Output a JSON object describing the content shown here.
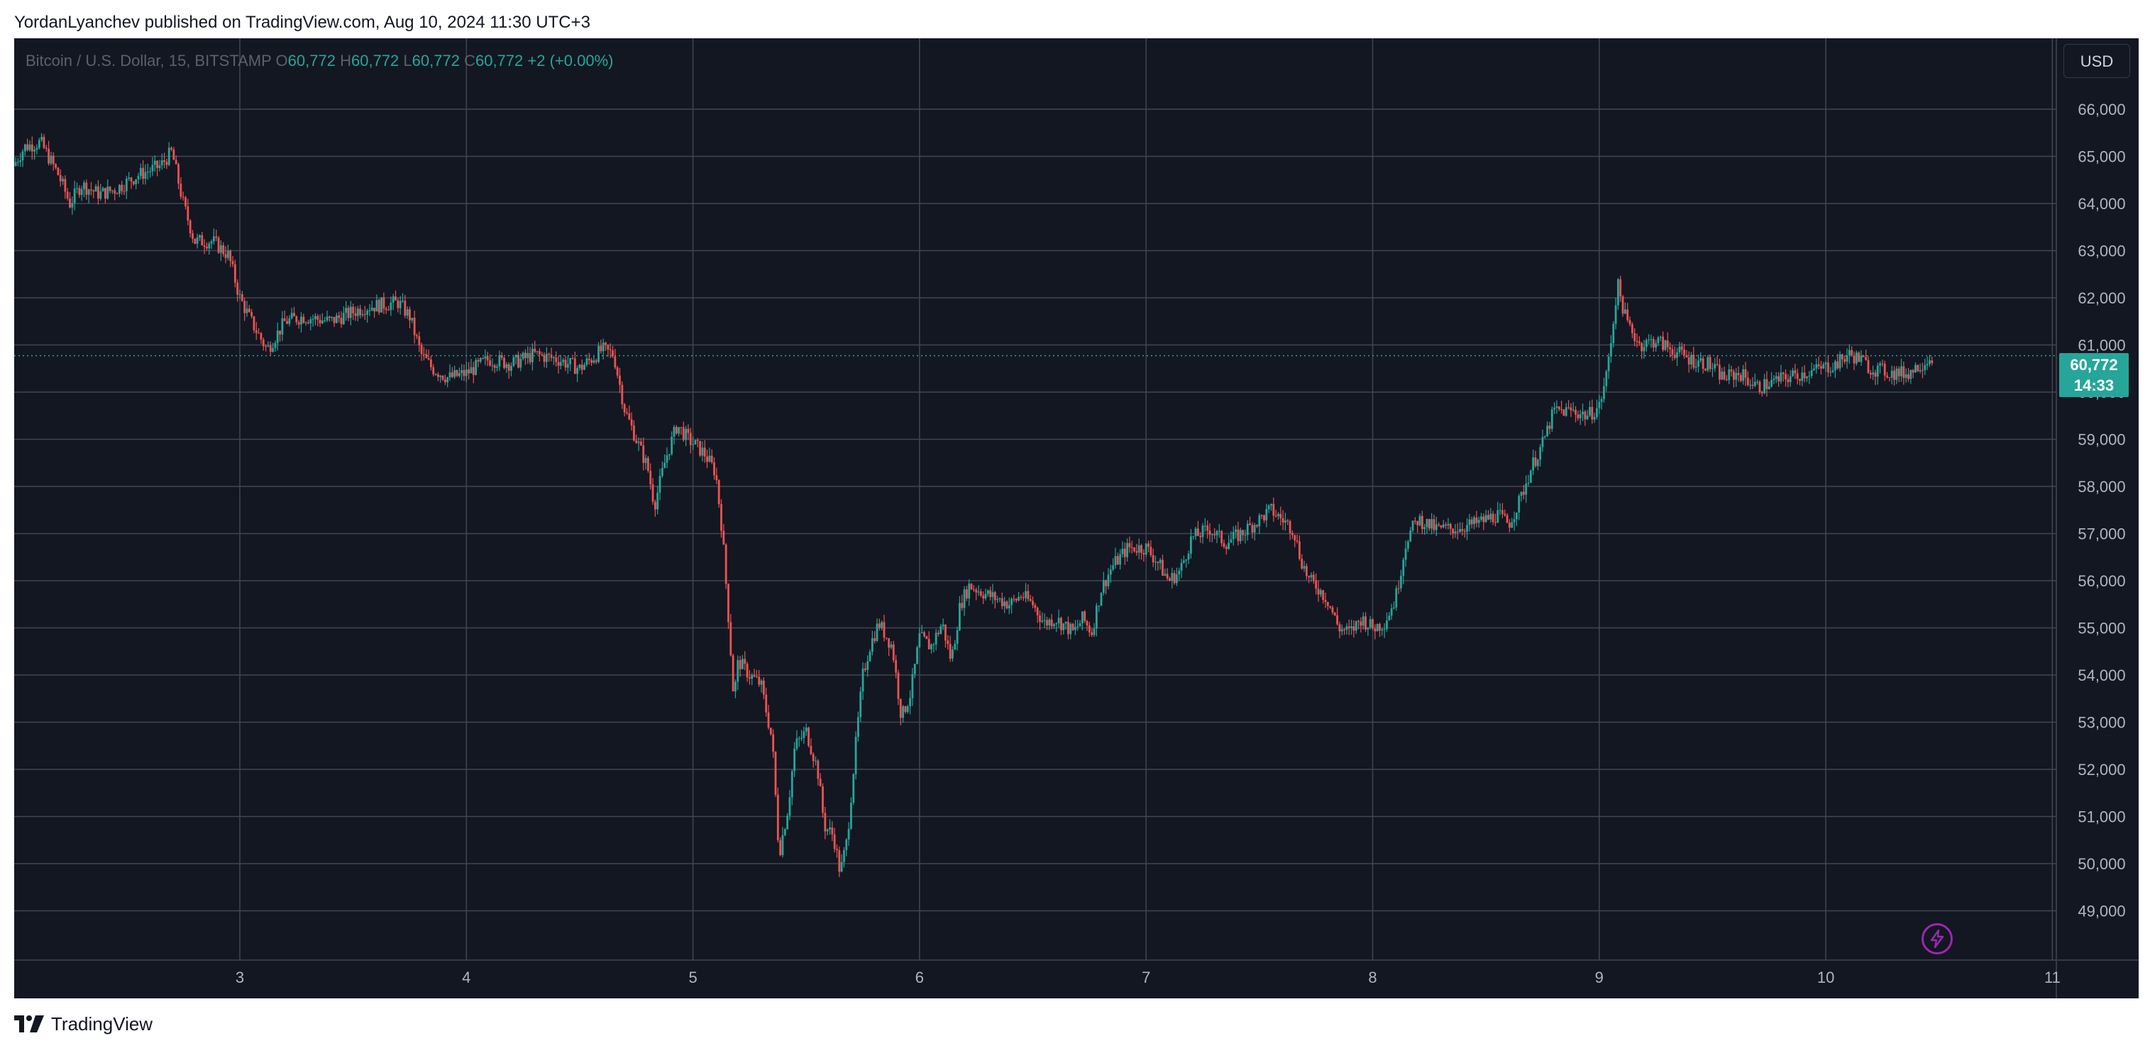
{
  "header": {
    "publisher_line": "YordanLyanchev published on TradingView.com, Aug 10, 2024 11:30 UTC+3"
  },
  "footer": {
    "brand": "TradingView",
    "logo_icon": "tradingview-logo-icon"
  },
  "toolbar": {
    "currency_button": "USD"
  },
  "legend": {
    "symbol": "Bitcoin / U.S. Dollar, 15, BITSTAMP",
    "o_key": "O",
    "o_val": "60,772",
    "h_key": "H",
    "h_val": "60,772",
    "l_key": "L",
    "l_val": "60,772",
    "c_key": "C",
    "c_val": "60,772",
    "change": "+2 (+0.00%)"
  },
  "last_price": {
    "price": "60,772",
    "countdown": "14:33"
  },
  "colors": {
    "background": "#131722",
    "grid": "#434651",
    "up": "#26a69a",
    "down": "#ef5350",
    "axis_text": "#b2b5be",
    "price_line": "#26a69a",
    "bolt": "#9c27b0"
  },
  "icons": {
    "alert": "lightning-bolt-icon"
  },
  "chart_data": {
    "type": "candlestick",
    "title": "Bitcoin / U.S. Dollar, 15, BITSTAMP",
    "x_ticks": [
      "3",
      "4",
      "5",
      "6",
      "7",
      "8",
      "9",
      "10",
      "11"
    ],
    "y_ticks": [
      "49,000",
      "50,000",
      "51,000",
      "52,000",
      "53,000",
      "54,000",
      "55,000",
      "56,000",
      "57,000",
      "58,000",
      "59,000",
      "60,000",
      "61,000",
      "62,000",
      "63,000",
      "64,000",
      "65,000",
      "66,000"
    ],
    "ylim": [
      48000,
      67000
    ],
    "xlim": [
      2.0,
      11.0
    ],
    "last_price": 60772,
    "grid": true,
    "series": [
      {
        "name": "BTCUSD",
        "close_path": [
          [
            2.0,
            64800
          ],
          [
            2.05,
            65200
          ],
          [
            2.12,
            65300
          ],
          [
            2.2,
            64600
          ],
          [
            2.25,
            64000
          ],
          [
            2.3,
            64400
          ],
          [
            2.38,
            64200
          ],
          [
            2.45,
            64300
          ],
          [
            2.55,
            64600
          ],
          [
            2.65,
            64800
          ],
          [
            2.7,
            65100
          ],
          [
            2.75,
            64000
          ],
          [
            2.8,
            63200
          ],
          [
            2.88,
            63200
          ],
          [
            2.95,
            62900
          ],
          [
            3.0,
            62000
          ],
          [
            3.05,
            61500
          ],
          [
            3.12,
            60900
          ],
          [
            3.2,
            61500
          ],
          [
            3.28,
            61600
          ],
          [
            3.4,
            61500
          ],
          [
            3.55,
            61800
          ],
          [
            3.7,
            61900
          ],
          [
            3.75,
            61600
          ],
          [
            3.8,
            60800
          ],
          [
            3.85,
            60500
          ],
          [
            3.92,
            60300
          ],
          [
            4.0,
            60400
          ],
          [
            4.1,
            60700
          ],
          [
            4.2,
            60600
          ],
          [
            4.3,
            60800
          ],
          [
            4.4,
            60700
          ],
          [
            4.5,
            60500
          ],
          [
            4.6,
            60900
          ],
          [
            4.65,
            60800
          ],
          [
            4.7,
            59600
          ],
          [
            4.75,
            59000
          ],
          [
            4.8,
            58400
          ],
          [
            4.83,
            57600
          ],
          [
            4.88,
            58600
          ],
          [
            4.93,
            59300
          ],
          [
            4.98,
            59000
          ],
          [
            5.05,
            58700
          ],
          [
            5.1,
            58300
          ],
          [
            5.13,
            57000
          ],
          [
            5.16,
            55000
          ],
          [
            5.18,
            53500
          ],
          [
            5.2,
            54300
          ],
          [
            5.25,
            54000
          ],
          [
            5.3,
            53800
          ],
          [
            5.35,
            52600
          ],
          [
            5.38,
            50200
          ],
          [
            5.42,
            51200
          ],
          [
            5.45,
            52500
          ],
          [
            5.5,
            52800
          ],
          [
            5.55,
            52000
          ],
          [
            5.58,
            50800
          ],
          [
            5.62,
            50600
          ],
          [
            5.65,
            49800
          ],
          [
            5.68,
            50500
          ],
          [
            5.72,
            52600
          ],
          [
            5.75,
            54000
          ],
          [
            5.78,
            54600
          ],
          [
            5.82,
            55100
          ],
          [
            5.88,
            54600
          ],
          [
            5.92,
            53100
          ],
          [
            5.96,
            53600
          ],
          [
            6.0,
            54800
          ],
          [
            6.05,
            54600
          ],
          [
            6.1,
            55100
          ],
          [
            6.14,
            54300
          ],
          [
            6.18,
            55500
          ],
          [
            6.22,
            55900
          ],
          [
            6.3,
            55700
          ],
          [
            6.4,
            55500
          ],
          [
            6.45,
            55700
          ],
          [
            6.5,
            55500
          ],
          [
            6.55,
            55100
          ],
          [
            6.6,
            55200
          ],
          [
            6.68,
            54900
          ],
          [
            6.72,
            55200
          ],
          [
            6.76,
            54900
          ],
          [
            6.8,
            55800
          ],
          [
            6.85,
            56300
          ],
          [
            6.92,
            56700
          ],
          [
            7.0,
            56700
          ],
          [
            7.05,
            56400
          ],
          [
            7.1,
            56000
          ],
          [
            7.15,
            56200
          ],
          [
            7.2,
            56900
          ],
          [
            7.28,
            57100
          ],
          [
            7.35,
            56800
          ],
          [
            7.42,
            57000
          ],
          [
            7.5,
            57300
          ],
          [
            7.55,
            57500
          ],
          [
            7.6,
            57300
          ],
          [
            7.65,
            57100
          ],
          [
            7.68,
            56500
          ],
          [
            7.72,
            56000
          ],
          [
            7.75,
            55900
          ],
          [
            7.8,
            55600
          ],
          [
            7.85,
            55000
          ],
          [
            7.9,
            54900
          ],
          [
            7.95,
            55200
          ],
          [
            8.0,
            55000
          ],
          [
            8.05,
            55100
          ],
          [
            8.1,
            55600
          ],
          [
            8.15,
            56900
          ],
          [
            8.2,
            57300
          ],
          [
            8.28,
            57100
          ],
          [
            8.35,
            57100
          ],
          [
            8.45,
            57200
          ],
          [
            8.55,
            57400
          ],
          [
            8.6,
            57200
          ],
          [
            8.65,
            57700
          ],
          [
            8.7,
            58400
          ],
          [
            8.75,
            58900
          ],
          [
            8.8,
            59600
          ],
          [
            8.88,
            59600
          ],
          [
            8.95,
            59500
          ],
          [
            9.0,
            59700
          ],
          [
            9.03,
            60300
          ],
          [
            9.06,
            61400
          ],
          [
            9.08,
            62300
          ],
          [
            9.12,
            61500
          ],
          [
            9.18,
            61000
          ],
          [
            9.25,
            61100
          ],
          [
            9.32,
            60900
          ],
          [
            9.4,
            60700
          ],
          [
            9.48,
            60600
          ],
          [
            9.55,
            60300
          ],
          [
            9.62,
            60400
          ],
          [
            9.7,
            60100
          ],
          [
            9.76,
            60200
          ],
          [
            9.82,
            60300
          ],
          [
            9.9,
            60400
          ],
          [
            9.98,
            60500
          ],
          [
            10.05,
            60600
          ],
          [
            10.1,
            60800
          ],
          [
            10.15,
            60700
          ],
          [
            10.2,
            60500
          ],
          [
            10.3,
            60400
          ],
          [
            10.36,
            60400
          ],
          [
            10.42,
            60600
          ],
          [
            10.47,
            60772
          ]
        ]
      }
    ]
  }
}
